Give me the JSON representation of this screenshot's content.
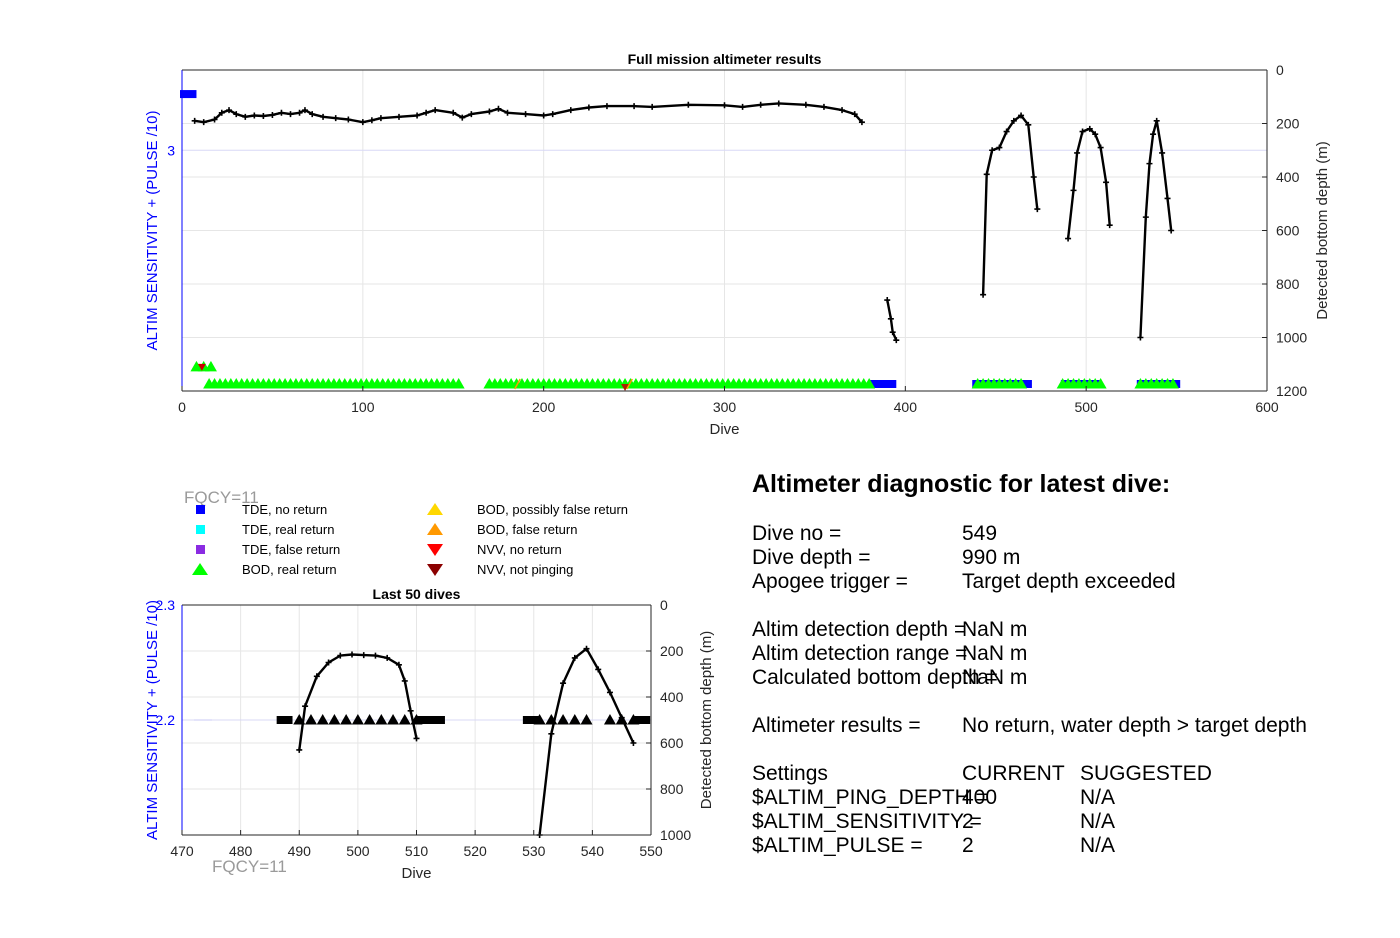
{
  "chart_data": [
    {
      "type": "line",
      "title": "Full mission altimeter results",
      "xlabel": "Dive",
      "ylabel_left": "ALTIM SENSITIVITY + (PULSE /10)",
      "ylabel_right": "Detected bottom depth (m)",
      "xlim": [
        0,
        600
      ],
      "ylim_left": [
        1.8,
        3.4
      ],
      "ylim_right": [
        1200,
        0
      ],
      "x_ticks": [
        "0",
        "100",
        "200",
        "300",
        "400",
        "500",
        "600"
      ],
      "y_left_ticks": [
        "3"
      ],
      "y_right_ticks": [
        "0",
        "200",
        "400",
        "600",
        "800",
        "1000",
        "1200"
      ],
      "grid": true,
      "series": [
        {
          "name": "Detected bottom depth",
          "color": "#000000",
          "segments": [
            [
              [
                7,
                190
              ],
              [
                12,
                195
              ],
              [
                18,
                185
              ],
              [
                22,
                160
              ],
              [
                26,
                150
              ],
              [
                30,
                165
              ],
              [
                35,
                175
              ],
              [
                40,
                170
              ],
              [
                45,
                172
              ],
              [
                50,
                168
              ],
              [
                55,
                160
              ],
              [
                60,
                165
              ],
              [
                65,
                160
              ],
              [
                68,
                150
              ],
              [
                72,
                165
              ],
              [
                78,
                175
              ],
              [
                85,
                180
              ],
              [
                92,
                185
              ],
              [
                100,
                195
              ],
              [
                105,
                188
              ],
              [
                110,
                180
              ],
              [
                120,
                175
              ],
              [
                130,
                170
              ],
              [
                135,
                160
              ],
              [
                140,
                150
              ],
              [
                150,
                160
              ],
              [
                155,
                178
              ],
              [
                160,
                165
              ],
              [
                170,
                155
              ],
              [
                175,
                145
              ],
              [
                180,
                160
              ],
              [
                190,
                165
              ],
              [
                200,
                170
              ],
              [
                205,
                165
              ],
              [
                215,
                150
              ],
              [
                225,
                140
              ],
              [
                235,
                135
              ],
              [
                250,
                135
              ],
              [
                260,
                138
              ],
              [
                280,
                130
              ],
              [
                300,
                132
              ],
              [
                310,
                138
              ],
              [
                320,
                130
              ],
              [
                330,
                125
              ],
              [
                345,
                130
              ],
              [
                355,
                138
              ],
              [
                365,
                150
              ],
              [
                372,
                165
              ],
              [
                376,
                195
              ]
            ],
            [
              [
                390,
                860
              ],
              [
                392,
                930
              ],
              [
                393,
                980
              ],
              [
                395,
                1010
              ]
            ],
            [
              [
                443,
                840
              ],
              [
                445,
                390
              ],
              [
                448,
                300
              ],
              [
                452,
                290
              ],
              [
                456,
                230
              ],
              [
                460,
                190
              ],
              [
                464,
                170
              ],
              [
                468,
                205
              ],
              [
                471,
                400
              ],
              [
                473,
                520
              ]
            ],
            [
              [
                490,
                630
              ],
              [
                493,
                450
              ],
              [
                495,
                310
              ],
              [
                498,
                230
              ],
              [
                502,
                220
              ],
              [
                505,
                240
              ],
              [
                508,
                290
              ],
              [
                511,
                420
              ],
              [
                513,
                580
              ]
            ],
            [
              [
                530,
                1000
              ],
              [
                533,
                550
              ],
              [
                535,
                350
              ],
              [
                537,
                240
              ],
              [
                539,
                190
              ],
              [
                542,
                310
              ],
              [
                545,
                480
              ],
              [
                547,
                600
              ]
            ]
          ]
        }
      ],
      "markers": [
        {
          "name": "TDE, no return",
          "color": "#0000ff",
          "ranges": [
            [
              0,
              8
            ],
            [
              380,
              395
            ],
            [
              437,
              470
            ],
            [
              486,
              508
            ],
            [
              528,
              552
            ]
          ]
        },
        {
          "name": "BOD, real return",
          "color": "#00ff00",
          "ranges": [
            [
              8,
              18
            ],
            [
              15,
              155
            ],
            [
              170,
              380
            ],
            [
              440,
              465
            ],
            [
              487,
              508
            ],
            [
              530,
              550
            ]
          ]
        }
      ]
    },
    {
      "type": "line",
      "title": "Last 50 dives",
      "xlabel": "Dive",
      "ylabel_left": "ALTIM SENSITIVITY + (PULSE /10)",
      "ylabel_right": "Detected bottom depth (m)",
      "xlim": [
        470,
        550
      ],
      "ylim_left": [
        2.1,
        2.3
      ],
      "ylim_right": [
        1000,
        0
      ],
      "x_ticks": [
        "470",
        "480",
        "490",
        "500",
        "510",
        "520",
        "530",
        "540",
        "550"
      ],
      "y_left_ticks": [
        "2.3",
        "2.2"
      ],
      "y_right_ticks": [
        "0",
        "200",
        "400",
        "600",
        "800",
        "1000"
      ],
      "grid": true,
      "series": [
        {
          "name": "Detected bottom depth",
          "color": "#000000",
          "segments": [
            [
              [
                490,
                630
              ],
              [
                491,
                440
              ],
              [
                493,
                310
              ],
              [
                495,
                250
              ],
              [
                497,
                220
              ],
              [
                499,
                215
              ],
              [
                501,
                218
              ],
              [
                503,
                220
              ],
              [
                505,
                230
              ],
              [
                507,
                260
              ],
              [
                508,
                330
              ],
              [
                509,
                460
              ],
              [
                510,
                580
              ]
            ],
            [
              [
                531,
                1000
              ],
              [
                533,
                560
              ],
              [
                535,
                340
              ],
              [
                537,
                230
              ],
              [
                539,
                190
              ],
              [
                541,
                280
              ],
              [
                543,
                380
              ],
              [
                545,
                490
              ],
              [
                547,
                600
              ]
            ]
          ]
        }
      ],
      "markers": [
        {
          "name": "TDE, no return",
          "value": 2.2,
          "dives": [
            487,
            488,
            511,
            512,
            513,
            514,
            529,
            530,
            548,
            549
          ]
        },
        {
          "name": "BOD, real return",
          "value": 2.2,
          "dives": [
            490,
            492,
            494,
            496,
            498,
            500,
            502,
            504,
            506,
            508,
            510,
            531,
            533,
            535,
            537,
            539,
            543,
            545,
            547
          ]
        }
      ],
      "annotation": "FQCY=11"
    }
  ],
  "legend": {
    "fqcy_label": "FQCY=11",
    "items": [
      {
        "label": "TDE, no return",
        "color": "#0000ff",
        "shape": "square"
      },
      {
        "label": "TDE, real return",
        "color": "#00ffff",
        "shape": "square"
      },
      {
        "label": "TDE, false return",
        "color": "#8a2be2",
        "shape": "square"
      },
      {
        "label": "BOD, real return",
        "color": "#00ff00",
        "shape": "triangle-up"
      },
      {
        "label": "BOD, possibly false return",
        "color": "#ffd700",
        "shape": "triangle-up"
      },
      {
        "label": "BOD, false return",
        "color": "#ff9900",
        "shape": "triangle-up"
      },
      {
        "label": "NVV, no return",
        "color": "#ff0000",
        "shape": "triangle-down"
      },
      {
        "label": "NVV, not pinging",
        "color": "#8b0000",
        "shape": "triangle-down"
      }
    ]
  },
  "diagnostic": {
    "title": "Altimeter diagnostic for latest dive:",
    "dive_no_label": "Dive no =",
    "dive_no": "549",
    "dive_depth_label": "Dive depth =",
    "dive_depth": "990 m",
    "apogee_label": "Apogee trigger =",
    "apogee": "Target depth exceeded",
    "det_depth_label": "Altim detection depth =",
    "det_depth": "NaN m",
    "det_range_label": "Altim detection range =",
    "det_range": "NaN m",
    "calc_label": "Calculated bottom depth =",
    "calc": "NaN m",
    "results_label": "Altimeter results =",
    "results": "No return, water depth > target depth",
    "settings_label": "Settings",
    "current_label": "CURRENT",
    "suggested_label": "SUGGESTED",
    "ping_label": "$ALTIM_PING_DEPTH =",
    "ping_current": "400",
    "ping_suggested": "N/A",
    "sens_label": "$ALTIM_SENSITIVITY =",
    "sens_current": "2",
    "sens_suggested": "N/A",
    "pulse_label": "$ALTIM_PULSE =",
    "pulse_current": "2",
    "pulse_suggested": "N/A"
  }
}
